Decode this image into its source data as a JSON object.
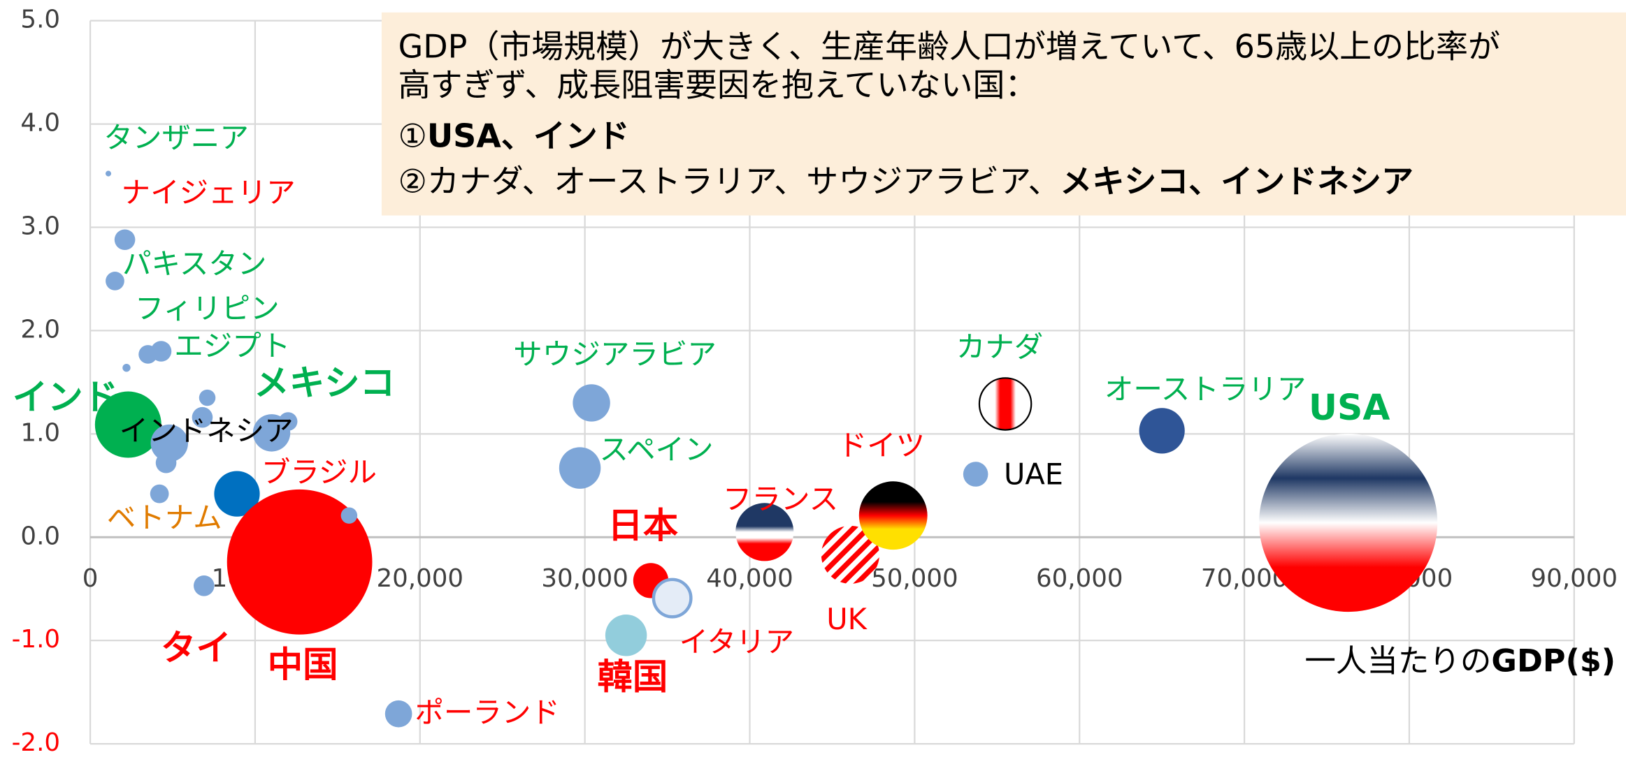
{
  "chart_data": {
    "type": "scatter",
    "bubble": true,
    "grid": true,
    "xlim": [
      0,
      90000
    ],
    "ylim": [
      -2,
      5
    ],
    "xticks": [
      0,
      {
        "value": 10000,
        "label": "10,000"
      },
      {
        "value": 20000,
        "label": "20,000"
      },
      {
        "value": 30000,
        "label": "30,000"
      },
      {
        "value": 40000,
        "label": "40,000"
      },
      {
        "value": 50000,
        "label": "50,000"
      },
      {
        "value": 60000,
        "label": "60,000"
      },
      {
        "value": 70000,
        "label": "70,000"
      },
      {
        "value": 80000,
        "label": "80,000"
      },
      {
        "value": 90000,
        "label": "90,000"
      }
    ],
    "yticks": [
      {
        "value": -2,
        "label": "-2.0"
      },
      {
        "value": -1,
        "label": "-1.0"
      },
      {
        "value": 0,
        "label": "0.0"
      },
      {
        "value": 1,
        "label": "1.0"
      },
      {
        "value": 2,
        "label": "2.0"
      },
      {
        "value": 3,
        "label": "3.0"
      },
      {
        "value": 4,
        "label": "4.0"
      },
      {
        "value": 5,
        "label": "5.0"
      }
    ],
    "negative_tick_color": "#ff0000",
    "x_label": [
      {
        "text": "一人当たりの",
        "bold": false
      },
      {
        "text": "GDP($)",
        "bold": true
      }
    ],
    "annotation": {
      "lines": [
        [
          {
            "text": "GDP（市場規模）が大きく、生産年齢人口が増えていて、65歳以上の比率が",
            "bold": false
          }
        ],
        [
          {
            "text": "高すぎず、成長阻害要因を抱えていない国：",
            "bold": false
          }
        ],
        [
          {
            "text": "①",
            "bold": false
          },
          {
            "text": "USA、インド",
            "bold": true
          }
        ],
        [
          {
            "text": "②カナダ、オーストラリア、サウジアラビア、",
            "bold": false
          },
          {
            "text": "メキシコ、インドネシア",
            "bold": true
          }
        ]
      ]
    },
    "points": [
      {
        "label": "タンザニア",
        "label_color": "#00b050",
        "bold": false,
        "x": 1100,
        "y": 3.52,
        "size": 0.02,
        "color": "#7ea6d8"
      },
      {
        "label": "ナイジェリア",
        "label_color": "#ff0000",
        "bold": false,
        "x": 2100,
        "y": 2.88,
        "size": 0.27,
        "color": "#7ea6d8"
      },
      {
        "label": "パキスタン",
        "label_color": "#00b050",
        "bold": false,
        "x": 1500,
        "y": 2.48,
        "size": 0.22,
        "color": "#7ea6d8"
      },
      {
        "label": "フィリピン",
        "label_color": "#00b050",
        "bold": false,
        "x": 3500,
        "y": 1.77,
        "size": 0.22,
        "color": "#7ea6d8"
      },
      {
        "label": "エジプト",
        "label_color": "#00b050",
        "bold": false,
        "x": 4300,
        "y": 1.8,
        "size": 0.27,
        "color": "#7ea6d8"
      },
      {
        "x": 2200,
        "y": 1.64,
        "size": 0.04,
        "color": "#7ea6d8"
      },
      {
        "label": "インド",
        "label_color": "#00b050",
        "bold": true,
        "x": 2300,
        "y": 1.09,
        "size": 2.78,
        "color": "#00b050"
      },
      {
        "x": 7100,
        "y": 1.35,
        "size": 0.17,
        "color": "#7ea6d8"
      },
      {
        "x": 6800,
        "y": 1.16,
        "size": 0.27,
        "color": "#7ea6d8"
      },
      {
        "label": "メキシコ",
        "label_color": "#00b050",
        "bold": true,
        "x": 11000,
        "y": 1.01,
        "size": 0.88,
        "color": "#7ea6d8"
      },
      {
        "x": 12000,
        "y": 1.12,
        "size": 0.22,
        "color": "#7ea6d8"
      },
      {
        "label": "インドネシア",
        "label_color": "#000000",
        "bold": false,
        "x": 4800,
        "y": 0.91,
        "size": 0.88,
        "color": "#7ea6d8"
      },
      {
        "x": 4600,
        "y": 0.72,
        "size": 0.27,
        "color": "#7ea6d8"
      },
      {
        "label": "ベトナム",
        "label_color": "#e07b00",
        "bold": false,
        "x": 4200,
        "y": 0.42,
        "size": 0.22,
        "color": "#7ea6d8"
      },
      {
        "label": "ブラジル",
        "label_color": "#ff0000",
        "bold": false,
        "x": 8900,
        "y": 0.42,
        "size": 1.31,
        "color": "#0070c0"
      },
      {
        "label": "中国",
        "label_color": "#ff0000",
        "bold": true,
        "x": 12700,
        "y": -0.24,
        "size": 13.3,
        "color": "#ff0000"
      },
      {
        "x": 15700,
        "y": 0.21,
        "size": 0.17,
        "color": "#7ea6d8"
      },
      {
        "label": "タイ",
        "label_color": "#ff0000",
        "bold": true,
        "x": 6900,
        "y": -0.47,
        "size": 0.27,
        "color": "#7ea6d8"
      },
      {
        "label": "サウジアラビア",
        "label_color": "#00b050",
        "bold": false,
        "x": 30400,
        "y": 1.3,
        "size": 0.88,
        "color": "#7ea6d8"
      },
      {
        "label": "スペイン",
        "label_color": "#00b050",
        "bold": false,
        "x": 29700,
        "y": 0.67,
        "size": 1.09,
        "color": "#7ea6d8"
      },
      {
        "label": "日本",
        "label_color": "#ff0000",
        "bold": true,
        "x": 34000,
        "y": -0.42,
        "size": 0.78,
        "color": "#ff0000"
      },
      {
        "label": "イタリア",
        "label_color": "#ff0000",
        "bold": false,
        "x": 35300,
        "y": -0.59,
        "size": 0.88,
        "color": "#e4ecf7"
      },
      {
        "label": "韓国",
        "label_color": "#ff0000",
        "bold": true,
        "x": 32500,
        "y": -0.95,
        "size": 1.09,
        "color": "#92cddc"
      },
      {
        "label": "ポーランド",
        "label_color": "#ff0000",
        "bold": false,
        "x": 18700,
        "y": -1.71,
        "size": 0.46,
        "color": "#7ea6d8"
      },
      {
        "label": "フランス",
        "label_color": "#ff0000",
        "bold": false,
        "x": 40900,
        "y": 0.05,
        "size": 2.13,
        "color": "#1f3864"
      },
      {
        "label": "UK",
        "label_color": "#ff0000",
        "bold": false,
        "x": 46100,
        "y": -0.17,
        "size": 2.13,
        "color": "#ff0000"
      },
      {
        "label": "ドイツ",
        "label_color": "#ff0000",
        "bold": false,
        "x": 48700,
        "y": 0.21,
        "size": 2.95,
        "color": "#000000"
      },
      {
        "label": "UAE",
        "label_color": "#000000",
        "bold": false,
        "x": 53700,
        "y": 0.61,
        "size": 0.39,
        "color": "#7ea6d8"
      },
      {
        "label": "カナダ",
        "label_color": "#00b050",
        "bold": false,
        "x": 55500,
        "y": 1.29,
        "size": 1.7,
        "color": "#ff0000"
      },
      {
        "label": "オーストラリア",
        "label_color": "#00b050",
        "bold": false,
        "x": 65000,
        "y": 1.03,
        "size": 1.31,
        "color": "#2f5597"
      },
      {
        "label": "USA",
        "label_color": "#00b050",
        "bold": true,
        "x": 76300,
        "y": 0.14,
        "size": 20.06,
        "color": "#1f3864"
      }
    ]
  }
}
